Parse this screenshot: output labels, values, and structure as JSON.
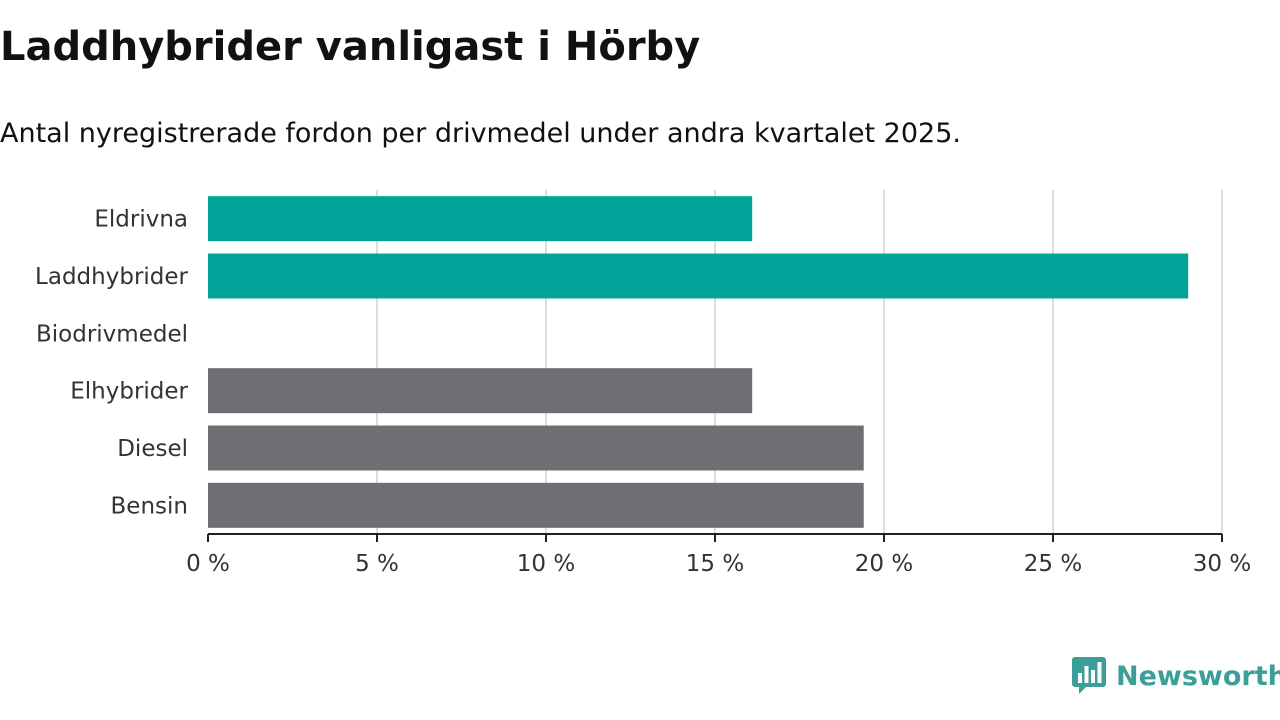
{
  "header": {
    "title": "Laddhybrider vanligast i Hörby",
    "subtitle": "Antal nyregistrerade fordon per drivmedel under andra kvartalet 2025."
  },
  "branding": {
    "logo_text": "Newsworthy",
    "logo_icon": "bar-chart-speech-bubble-icon"
  },
  "colors": {
    "highlight": "#00a499",
    "default": "#6f6e73",
    "gridline": "#dddddd",
    "axis": "#222222",
    "brand": "#3b9e98"
  },
  "chart_data": {
    "type": "bar",
    "orientation": "horizontal",
    "categories": [
      "Eldrivna",
      "Laddhybrider",
      "Biodrivmedel",
      "Elhybrider",
      "Diesel",
      "Bensin"
    ],
    "values": [
      16.1,
      29.0,
      0,
      16.1,
      19.4,
      19.4
    ],
    "highlight": [
      true,
      true,
      false,
      false,
      false,
      false
    ],
    "x_ticks": [
      0,
      5,
      10,
      15,
      20,
      25,
      30
    ],
    "x_tick_labels": [
      "0 %",
      "5 %",
      "10 %",
      "15 %",
      "20 %",
      "25 %",
      "30 %"
    ],
    "xlim": [
      0,
      30
    ],
    "grid": true,
    "legend": "none"
  }
}
